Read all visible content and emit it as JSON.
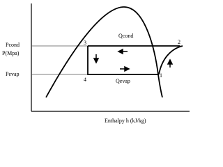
{
  "axes": {
    "y_label": "P(Mpa)",
    "x_label": "Enthalpy h (kJ/kg)"
  },
  "pressure_levels": {
    "high": "Pcond",
    "low": "Pevap"
  },
  "states": [
    "1",
    "2",
    "3",
    "4"
  ],
  "heat": {
    "condenser": "Qcond",
    "evaporator": "Qevap"
  }
}
